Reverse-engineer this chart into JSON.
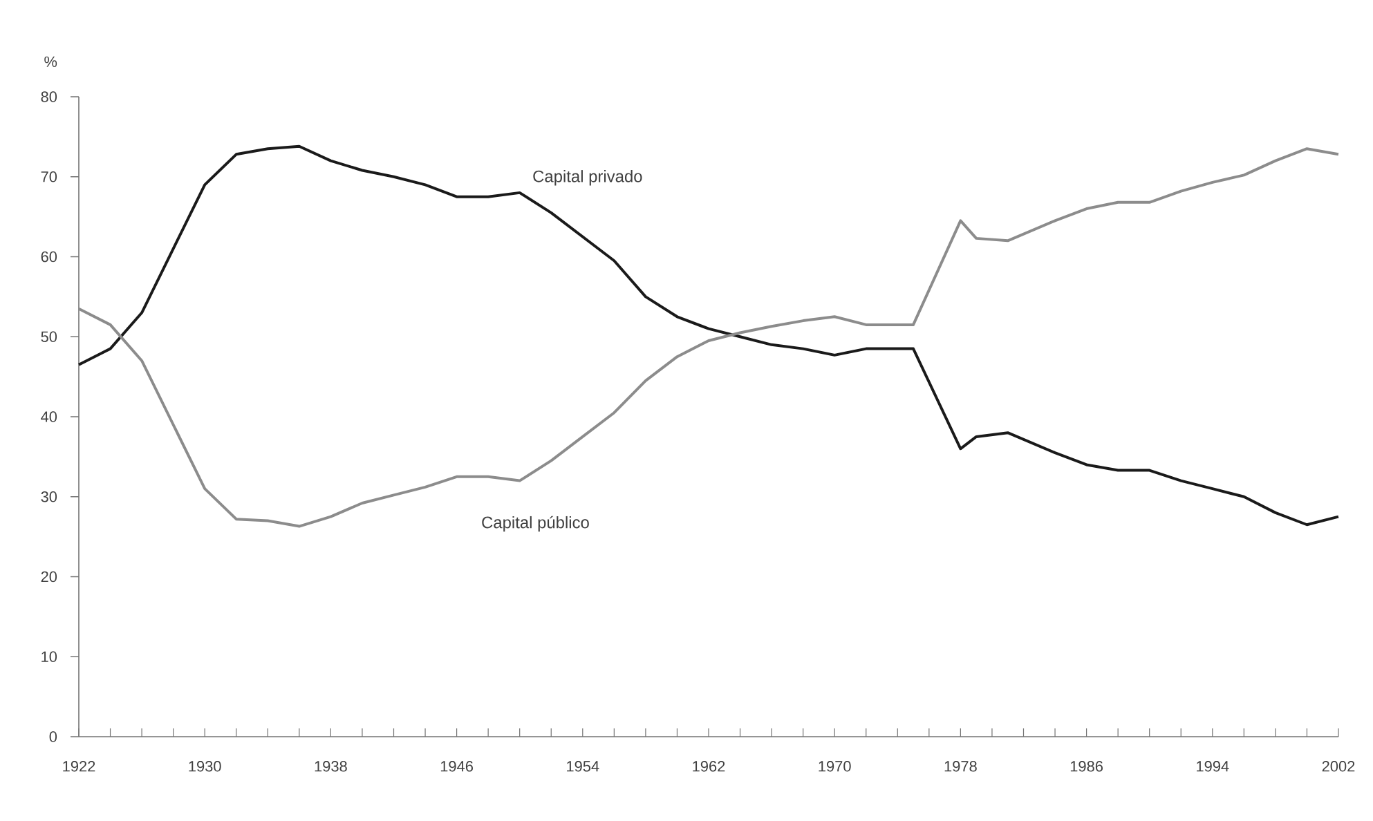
{
  "chart_data": {
    "type": "line",
    "ylabel": "%",
    "x": [
      1922,
      1924,
      1926,
      1928,
      1930,
      1932,
      1934,
      1936,
      1938,
      1940,
      1942,
      1944,
      1946,
      1948,
      1950,
      1952,
      1954,
      1956,
      1958,
      1960,
      1962,
      1964,
      1966,
      1968,
      1970,
      1972,
      1975,
      1978,
      1979,
      1981,
      1984,
      1986,
      1988,
      1990,
      1992,
      1994,
      1996,
      1998,
      2000,
      2002
    ],
    "series": [
      {
        "name": "Capital privado",
        "color": "#1a1a1a",
        "values": [
          46.5,
          48.5,
          53,
          61,
          69,
          72.8,
          73.5,
          73.8,
          72,
          70.8,
          70,
          69,
          67.5,
          67.5,
          68,
          65.5,
          62.5,
          59.5,
          55,
          52.5,
          51,
          50,
          49,
          48.5,
          47.7,
          48.5,
          48.5,
          36,
          37.5,
          38,
          35.5,
          34,
          33.3,
          33.3,
          32,
          31,
          30,
          28,
          26.5,
          27.5
        ]
      },
      {
        "name": "Capital público",
        "color": "#8c8c8c",
        "values": [
          53.5,
          51.5,
          47,
          39,
          31,
          27.2,
          27,
          26.3,
          27.5,
          29.2,
          30.2,
          31.2,
          32.5,
          32.5,
          32,
          34.5,
          37.5,
          40.5,
          44.5,
          47.5,
          49.5,
          50.5,
          51.3,
          52,
          52.5,
          51.5,
          51.5,
          64.5,
          62.3,
          62,
          64.5,
          66,
          66.8,
          66.8,
          68.2,
          69.3,
          70.2,
          72,
          73.5,
          72.8
        ]
      }
    ],
    "xlim": [
      1922,
      2002
    ],
    "ylim": [
      0,
      80
    ],
    "xticks": [
      1922,
      {
        "value": 1924,
        "label": null
      },
      {
        "value": 1926,
        "label": null
      },
      {
        "value": 1928,
        "label": null
      },
      1930,
      {
        "value": 1932,
        "label": null
      },
      {
        "value": 1934,
        "label": null
      },
      {
        "value": 1936,
        "label": null
      },
      1938,
      {
        "value": 1940,
        "label": null
      },
      {
        "value": 1942,
        "label": null
      },
      {
        "value": 1944,
        "label": null
      },
      1946,
      {
        "value": 1948,
        "label": null
      },
      {
        "value": 1950,
        "label": null
      },
      {
        "value": 1952,
        "label": null
      },
      1954,
      {
        "value": 1956,
        "label": null
      },
      {
        "value": 1958,
        "label": null
      },
      {
        "value": 1960,
        "label": null
      },
      1962,
      {
        "value": 1964,
        "label": null
      },
      {
        "value": 1966,
        "label": null
      },
      {
        "value": 1968,
        "label": null
      },
      1970,
      {
        "value": 1972,
        "label": null
      },
      {
        "value": 1974,
        "label": null
      },
      {
        "value": 1976,
        "label": null
      },
      1978,
      {
        "value": 1980,
        "label": null
      },
      {
        "value": 1982,
        "label": null
      },
      {
        "value": 1984,
        "label": null
      },
      1986,
      {
        "value": 1988,
        "label": null
      },
      {
        "value": 1990,
        "label": null
      },
      {
        "value": 1992,
        "label": null
      },
      1994,
      {
        "value": 1996,
        "label": null
      },
      {
        "value": 1998,
        "label": null
      },
      {
        "value": 2000,
        "label": null
      },
      2002
    ],
    "yticks": [
      0,
      10,
      20,
      30,
      40,
      50,
      60,
      70,
      80
    ],
    "grid": false,
    "legend": false,
    "marker": "none",
    "line_style": "solid"
  }
}
